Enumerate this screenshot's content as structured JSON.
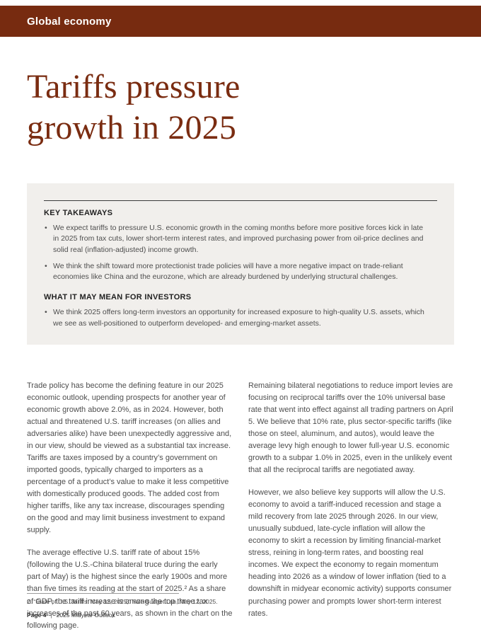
{
  "colors": {
    "accent": "#772b10",
    "title": "#7a2c11",
    "box_background": "#f1efec",
    "body_text": "#4e4e4e"
  },
  "header": {
    "label": "Global economy"
  },
  "title": "Tariffs pressure growth in 2025",
  "takeaways": {
    "heading1": "KEY TAKEAWAYS",
    "bullets1": [
      "We expect tariffs to pressure U.S. economic growth in the coming months before more positive forces kick in late in 2025 from tax cuts, lower short-term interest rates, and improved purchasing power from oil-price declines and solid real (inflation-adjusted) income growth.",
      "We think the shift toward more protectionist trade policies will have a more negative impact on trade-reliant economies like China and the eurozone, which are already burdened by underlying structural challenges."
    ],
    "heading2": "WHAT IT MAY MEAN FOR INVESTORS",
    "bullets2": [
      "We think 2025 offers long-term investors an opportunity for increased exposure to high-quality U.S. assets, which we see as well-positioned to outperform developed- and emerging-market assets."
    ]
  },
  "body": {
    "left": [
      "Trade policy has become the defining feature in our 2025 economic outlook, upending prospects for another year of economic growth above 2.0%, as in 2024. However, both actual and threatened U.S. tariff increases (on allies and adversaries alike) have been unexpectedly aggressive and, in our view, should be viewed as a substantial tax increase. Tariffs are taxes imposed by a country’s government on imported goods, typically charged to importers as a percentage of a product’s value to make it less competitive with domestically produced goods. The added cost from higher tariffs, like any tax increase, discourages spending on the good and may limit business investment to expand supply.",
      "The average effective U.S. tariff rate of about 15% (following the U.S.-China bilateral truce during the early part of May) is the highest since the early 1900s and more than five times its reading at the start of 2025.² As a share of GDP, the tariff increase is among the top three tax increases of the past 60 years, as shown in the chart on the following page."
    ],
    "right": [
      "Remaining bilateral negotiations to reduce import levies are focusing on reciprocal tariffs over the 10% universal base rate that went into effect against all trading partners on April 5. We believe that 10% rate, plus sector-specific tariffs (like those on steel, aluminum, and autos), would leave the average levy high enough to lower full-year U.S. economic growth to a subpar 1.0% in 2025, even in the unlikely event that all the reciprocal tariffs are negotiated away.",
      "However, we also believe key supports will allow the U.S. economy to avoid a tariff-induced recession and stage a mild recovery from late 2025 through 2026. In our view, unusually subdued, late-cycle inflation will allow the economy to skirt a recession by limiting financial-market stress, reining in long-term rates, and boosting real incomes. We expect the economy to regain momentum heading into 2026 as a window of lower inflation (tied to a downshift in midyear economic activity) supports consumer purchasing power and prompts lower short-term interest rates."
    ]
  },
  "footnote": "2. “State of U.S. Tariffs: May 12, 2025,” Yale Budget Lab, May 12, 2025.",
  "footer": {
    "page": "Page 4",
    "separator": "|",
    "publication": "2025 Midyear Outlook"
  }
}
